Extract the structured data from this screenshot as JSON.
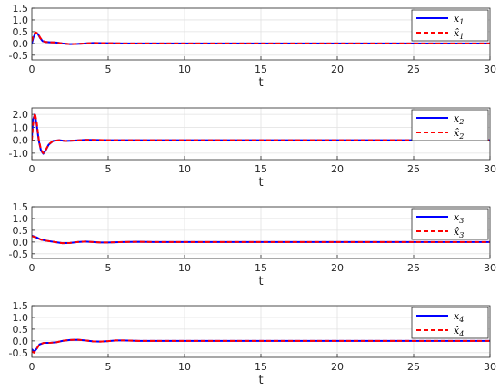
{
  "chart_data": [
    {
      "type": "line",
      "xlabel": "t",
      "xlim": [
        0,
        30
      ],
      "ylim": [
        -0.7,
        1.5
      ],
      "xticks": [
        "0",
        "5",
        "10",
        "15",
        "20",
        "25",
        "30"
      ],
      "yticks": [
        "-0.5",
        "0.0",
        "0.5",
        "1.0",
        "1.5"
      ],
      "grid": true,
      "legend_position": "top-right",
      "series": [
        {
          "name": "x1",
          "style": "solid",
          "color": "#0000ff",
          "x": [
            0,
            0.1,
            0.25,
            0.4,
            0.55,
            0.7,
            0.9,
            1.2,
            1.6,
            2.0,
            2.5,
            3.0,
            3.5,
            4.0,
            5.0,
            6.0,
            8.0,
            12.0,
            20.0,
            30.0
          ],
          "y": [
            0.0,
            0.25,
            0.45,
            0.4,
            0.22,
            0.1,
            0.06,
            0.05,
            0.04,
            0.0,
            -0.03,
            -0.02,
            0.0,
            0.02,
            0.01,
            0.0,
            0.0,
            0.0,
            0.0,
            0.0
          ]
        },
        {
          "name": "x̂1",
          "style": "dashed",
          "color": "#ff0000",
          "x": [
            0,
            0.1,
            0.25,
            0.4,
            0.55,
            0.7,
            0.9,
            1.2,
            1.6,
            2.0,
            2.5,
            3.0,
            3.5,
            4.0,
            5.0,
            6.0,
            8.0,
            12.0,
            20.0,
            30.0
          ],
          "y": [
            0.1,
            0.35,
            0.47,
            0.42,
            0.24,
            0.11,
            0.06,
            0.05,
            0.04,
            0.0,
            -0.03,
            -0.02,
            0.0,
            0.02,
            0.01,
            0.0,
            0.0,
            0.0,
            0.0,
            0.0
          ]
        }
      ]
    },
    {
      "type": "line",
      "xlabel": "t",
      "xlim": [
        0,
        30
      ],
      "ylim": [
        -1.5,
        2.5
      ],
      "xticks": [
        "0",
        "5",
        "10",
        "15",
        "20",
        "25",
        "30"
      ],
      "yticks": [
        "-1.0",
        "0.0",
        "1.0",
        "2.0"
      ],
      "grid": true,
      "legend_position": "top-right",
      "series": [
        {
          "name": "x2",
          "style": "solid",
          "color": "#0000ff",
          "x": [
            0,
            0.08,
            0.2,
            0.32,
            0.45,
            0.6,
            0.75,
            0.9,
            1.1,
            1.4,
            1.8,
            2.2,
            2.8,
            3.5,
            4.2,
            5.0,
            6.0,
            8.0,
            12.0,
            20.0,
            30.0
          ],
          "y": [
            0.2,
            1.6,
            2.0,
            1.2,
            0.0,
            -0.8,
            -1.05,
            -0.8,
            -0.35,
            -0.05,
            0.0,
            -0.06,
            -0.03,
            0.03,
            0.02,
            0.0,
            0.0,
            0.0,
            0.0,
            0.0,
            0.0
          ]
        },
        {
          "name": "x̂2",
          "style": "dashed",
          "color": "#ff0000",
          "x": [
            0,
            0.08,
            0.2,
            0.32,
            0.45,
            0.6,
            0.75,
            0.9,
            1.1,
            1.4,
            1.8,
            2.2,
            2.8,
            3.5,
            4.2,
            5.0,
            6.0,
            8.0,
            12.0,
            20.0,
            30.0
          ],
          "y": [
            0.0,
            1.2,
            2.1,
            1.4,
            0.1,
            -0.75,
            -1.0,
            -0.78,
            -0.33,
            -0.05,
            0.0,
            -0.06,
            -0.03,
            0.03,
            0.02,
            0.0,
            0.0,
            0.0,
            0.0,
            0.0,
            0.0
          ]
        }
      ]
    },
    {
      "type": "line",
      "xlabel": "t",
      "xlim": [
        0,
        30
      ],
      "ylim": [
        -0.7,
        1.5
      ],
      "xticks": [
        "0",
        "5",
        "10",
        "15",
        "20",
        "25",
        "30"
      ],
      "yticks": [
        "-0.5",
        "0.0",
        "0.5",
        "1.0",
        "1.5"
      ],
      "grid": true,
      "legend_position": "top-right",
      "series": [
        {
          "name": "x3",
          "style": "solid",
          "color": "#0000ff",
          "x": [
            0,
            0.3,
            0.6,
            1.0,
            1.5,
            2.0,
            2.5,
            3.0,
            3.5,
            4.0,
            4.5,
            5.0,
            6.0,
            7.0,
            8.0,
            10.0,
            15.0,
            20.0,
            30.0
          ],
          "y": [
            0.27,
            0.2,
            0.1,
            0.05,
            0.0,
            -0.05,
            -0.04,
            0.0,
            0.02,
            0.0,
            -0.02,
            -0.02,
            0.0,
            0.01,
            0.0,
            0.0,
            0.0,
            0.0,
            0.0
          ]
        },
        {
          "name": "x̂3",
          "style": "dashed",
          "color": "#ff0000",
          "x": [
            0,
            0.3,
            0.6,
            1.0,
            1.5,
            2.0,
            2.5,
            3.0,
            3.5,
            4.0,
            4.5,
            5.0,
            6.0,
            7.0,
            8.0,
            10.0,
            15.0,
            20.0,
            30.0
          ],
          "y": [
            0.25,
            0.19,
            0.1,
            0.05,
            0.0,
            -0.05,
            -0.04,
            0.0,
            0.02,
            0.0,
            -0.02,
            -0.02,
            0.0,
            0.01,
            0.0,
            0.0,
            0.0,
            0.0,
            0.0
          ]
        }
      ]
    },
    {
      "type": "line",
      "xlabel": "t",
      "xlim": [
        0,
        30
      ],
      "ylim": [
        -0.7,
        1.5
      ],
      "xticks": [
        "0",
        "5",
        "10",
        "15",
        "20",
        "25",
        "30"
      ],
      "yticks": [
        "-0.5",
        "0.0",
        "0.5",
        "1.0",
        "1.5"
      ],
      "grid": true,
      "legend_position": "top-right",
      "series": [
        {
          "name": "x4",
          "style": "solid",
          "color": "#0000ff",
          "x": [
            0,
            0.15,
            0.3,
            0.5,
            0.8,
            1.2,
            1.6,
            2.0,
            2.5,
            3.0,
            3.5,
            4.0,
            4.5,
            5.0,
            5.5,
            6.0,
            7.0,
            8.0,
            10.0,
            15.0,
            20.0,
            30.0
          ],
          "y": [
            -0.35,
            -0.45,
            -0.35,
            -0.15,
            -0.08,
            -0.08,
            -0.06,
            0.0,
            0.04,
            0.05,
            0.02,
            -0.02,
            -0.03,
            -0.01,
            0.02,
            0.02,
            0.0,
            0.0,
            0.0,
            0.0,
            0.0,
            0.0
          ]
        },
        {
          "name": "x̂4",
          "style": "dashed",
          "color": "#ff0000",
          "x": [
            0,
            0.15,
            0.3,
            0.5,
            0.8,
            1.2,
            1.6,
            2.0,
            2.5,
            3.0,
            3.5,
            4.0,
            4.5,
            5.0,
            5.5,
            6.0,
            7.0,
            8.0,
            10.0,
            15.0,
            20.0,
            30.0
          ],
          "y": [
            -0.45,
            -0.5,
            -0.36,
            -0.15,
            -0.08,
            -0.08,
            -0.06,
            0.0,
            0.04,
            0.05,
            0.02,
            -0.02,
            -0.03,
            -0.01,
            0.02,
            0.02,
            0.0,
            0.0,
            0.0,
            0.0,
            0.0,
            0.0
          ]
        }
      ]
    }
  ]
}
